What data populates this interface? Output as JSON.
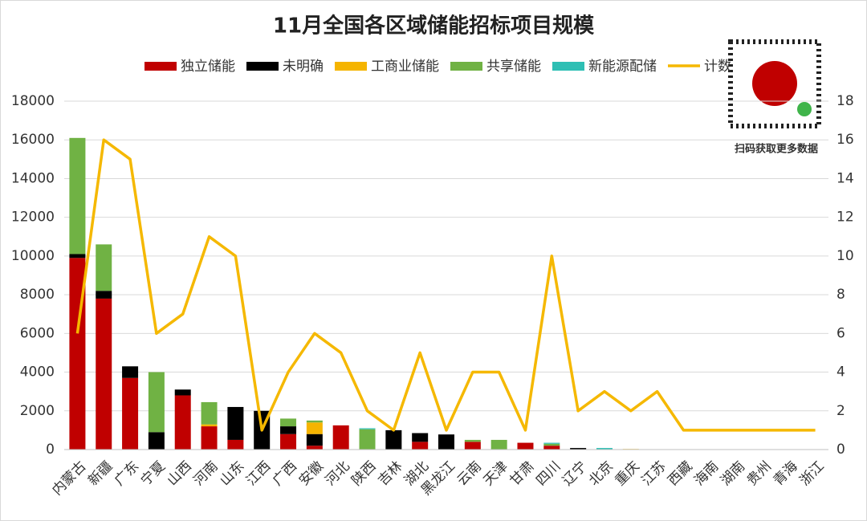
{
  "chart_data": {
    "type": "bar-line",
    "title": "11月全国各区域储能招标项目规模",
    "qr_caption": "扫码获取更多数据",
    "categories": [
      "内蒙古",
      "新疆",
      "广东",
      "宁夏",
      "山西",
      "河南",
      "山东",
      "江西",
      "广西",
      "安徽",
      "河北",
      "陕西",
      "吉林",
      "湖北",
      "黑龙江",
      "云南",
      "天津",
      "甘肃",
      "四川",
      "辽宁",
      "北京",
      "重庆",
      "江苏",
      "西藏",
      "海南",
      "湖南",
      "贵州",
      "青海",
      "浙江"
    ],
    "series": [
      {
        "name": "独立储能",
        "color": "#c00000",
        "values": [
          9900,
          7800,
          3700,
          0,
          2800,
          1200,
          500,
          0,
          800,
          200,
          1250,
          0,
          0,
          400,
          0,
          400,
          0,
          350,
          200,
          0,
          0,
          0,
          0,
          0,
          0,
          0,
          0,
          0,
          0
        ]
      },
      {
        "name": "未明确",
        "color": "#000000",
        "values": [
          200,
          400,
          600,
          900,
          300,
          0,
          1700,
          2000,
          400,
          600,
          0,
          0,
          1000,
          450,
          780,
          0,
          0,
          0,
          0,
          80,
          0,
          0,
          0,
          0,
          0,
          0,
          0,
          0,
          0
        ]
      },
      {
        "name": "工商业储能",
        "color": "#f5b400",
        "values": [
          0,
          0,
          0,
          0,
          0,
          100,
          0,
          0,
          0,
          600,
          0,
          0,
          0,
          0,
          0,
          0,
          0,
          0,
          0,
          0,
          0,
          30,
          0,
          0,
          0,
          0,
          0,
          0,
          0
        ]
      },
      {
        "name": "共享储能",
        "color": "#70b244",
        "values": [
          6000,
          2400,
          0,
          3100,
          0,
          1150,
          0,
          0,
          400,
          100,
          0,
          1050,
          0,
          0,
          0,
          100,
          500,
          0,
          100,
          0,
          0,
          0,
          0,
          0,
          0,
          0,
          0,
          0,
          0
        ]
      },
      {
        "name": "新能源配储",
        "color": "#2ebfb4",
        "values": [
          0,
          0,
          0,
          0,
          0,
          0,
          0,
          0,
          0,
          0,
          0,
          50,
          0,
          0,
          0,
          0,
          0,
          0,
          50,
          0,
          80,
          0,
          0,
          0,
          0,
          0,
          0,
          0,
          0
        ]
      },
      {
        "name": "计数",
        "color": "#f5b800",
        "axis": "y2",
        "values": [
          6,
          16,
          15,
          6,
          7,
          11,
          10,
          1,
          4,
          6,
          5,
          2,
          1,
          5,
          1,
          4,
          4,
          1,
          10,
          2,
          3,
          2,
          3,
          1,
          1,
          1,
          1,
          1,
          1
        ]
      }
    ],
    "ylim": [
      0,
      18000
    ],
    "yticks": [
      0,
      2000,
      4000,
      6000,
      8000,
      10000,
      12000,
      14000,
      16000,
      18000
    ],
    "y2lim": [
      0,
      18
    ],
    "y2ticks": [
      0,
      2,
      4,
      6,
      8,
      10,
      12,
      14,
      16,
      18
    ],
    "grid": true
  }
}
